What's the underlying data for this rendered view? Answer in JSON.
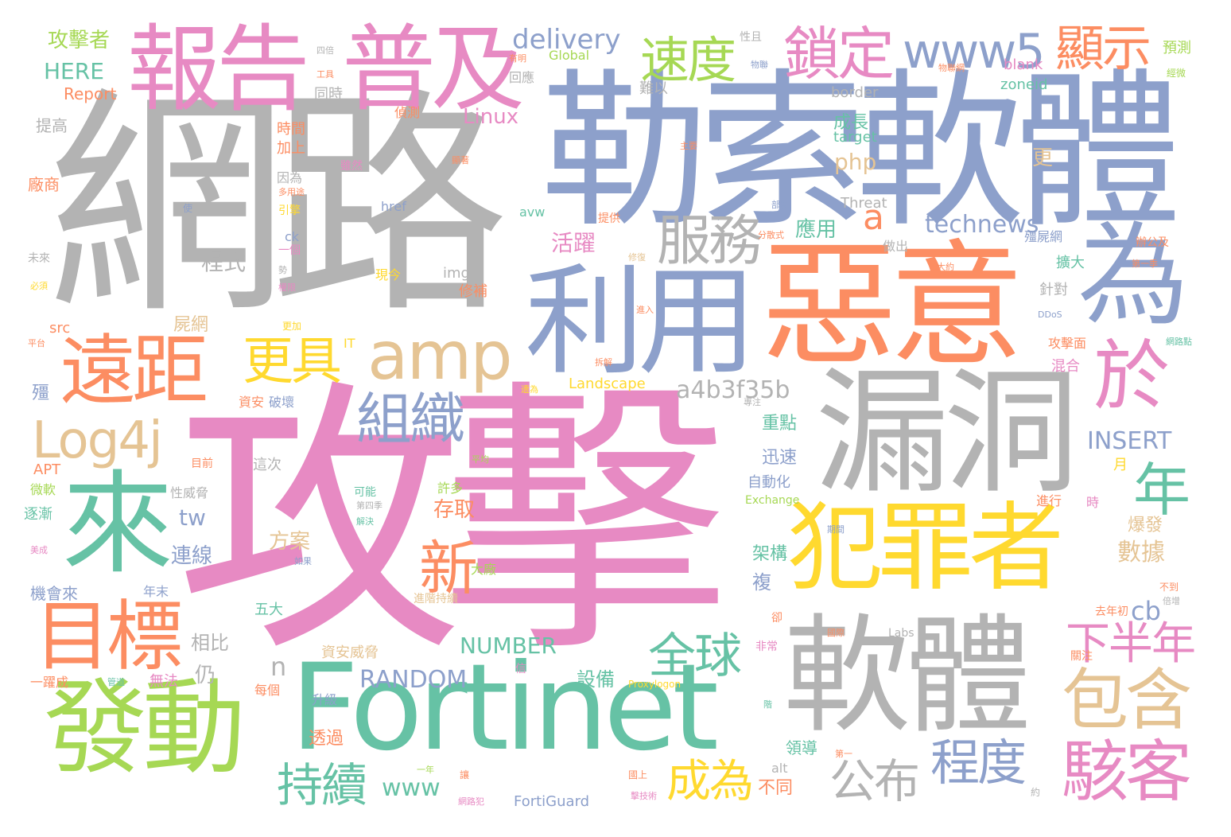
{
  "palette": {
    "gray": "#b3b3b3",
    "blue": "#8da0cb",
    "pink": "#e78ac3",
    "orange": "#fc8d62",
    "green": "#66c2a5",
    "lime": "#a6d854",
    "yellow": "#ffd92f",
    "tan": "#e5c494"
  },
  "words": [
    {
      "id": "w1",
      "text": "網路",
      "color": "#b3b3b3"
    },
    {
      "id": "w2",
      "text": "勒索軟體",
      "color": "#8da0cb"
    },
    {
      "id": "w3",
      "text": "攻擊",
      "color": "#e78ac3"
    },
    {
      "id": "w4",
      "text": "惡意",
      "color": "#fc8d62"
    },
    {
      "id": "w5",
      "text": "漏洞",
      "color": "#b3b3b3"
    },
    {
      "id": "w6",
      "text": "利用",
      "color": "#8da0cb"
    },
    {
      "id": "w7",
      "text": "為",
      "color": "#8da0cb"
    },
    {
      "id": "w8",
      "text": "報告",
      "color": "#e78ac3"
    },
    {
      "id": "w9",
      "text": "普及",
      "color": "#e78ac3"
    },
    {
      "id": "w10",
      "text": "鎖定",
      "color": "#e78ac3"
    },
    {
      "id": "w11",
      "text": "www5",
      "color": "#8da0cb"
    },
    {
      "id": "w12",
      "text": "顯示",
      "color": "#fc8d62"
    },
    {
      "id": "w13",
      "text": "速度",
      "color": "#a6d854"
    },
    {
      "id": "w14",
      "text": "delivery",
      "color": "#8da0cb"
    },
    {
      "id": "w15",
      "text": "服務",
      "color": "#b3b3b3"
    },
    {
      "id": "w16",
      "text": "amp",
      "color": "#e5c494"
    },
    {
      "id": "w17",
      "text": "遠距",
      "color": "#fc8d62"
    },
    {
      "id": "w18",
      "text": "更具",
      "color": "#ffd92f"
    },
    {
      "id": "w19",
      "text": "Log4j",
      "color": "#e5c494"
    },
    {
      "id": "w20",
      "text": "組織",
      "color": "#8da0cb"
    },
    {
      "id": "w21",
      "text": "來",
      "color": "#66c2a5"
    },
    {
      "id": "w22",
      "text": "犯罪者",
      "color": "#ffd92f"
    },
    {
      "id": "w23",
      "text": "於",
      "color": "#e78ac3"
    },
    {
      "id": "w24",
      "text": "年",
      "color": "#66c2a5"
    },
    {
      "id": "w25",
      "text": "目標",
      "color": "#fc8d62"
    },
    {
      "id": "w26",
      "text": "新",
      "color": "#fc8d62"
    },
    {
      "id": "w27",
      "text": "軟體",
      "color": "#b3b3b3"
    },
    {
      "id": "w28",
      "text": "發動",
      "color": "#a6d854"
    },
    {
      "id": "w29",
      "text": "Fortinet",
      "color": "#66c2a5"
    },
    {
      "id": "w30",
      "text": "包含",
      "color": "#e5c494"
    },
    {
      "id": "w31",
      "text": "駭客",
      "color": "#e78ac3"
    },
    {
      "id": "w32",
      "text": "全球",
      "color": "#66c2a5"
    },
    {
      "id": "w33",
      "text": "下半年",
      "color": "#e78ac3"
    },
    {
      "id": "w34",
      "text": "持續",
      "color": "#66c2a5"
    },
    {
      "id": "w35",
      "text": "成為",
      "color": "#ffd92f"
    },
    {
      "id": "w36",
      "text": "公布",
      "color": "#b3b3b3"
    },
    {
      "id": "w37",
      "text": "程度",
      "color": "#8da0cb"
    },
    {
      "id": "w38",
      "text": "technews",
      "color": "#8da0cb"
    },
    {
      "id": "w39",
      "text": "a4b3f35b",
      "color": "#b3b3b3"
    },
    {
      "id": "w40",
      "text": "RANDOM",
      "color": "#8da0cb"
    },
    {
      "id": "w41",
      "text": "NUMBER",
      "color": "#66c2a5"
    },
    {
      "id": "w42",
      "text": "INSERT",
      "color": "#8da0cb"
    },
    {
      "id": "w43",
      "text": "php",
      "color": "#e5c494"
    },
    {
      "id": "w44",
      "text": "Linux",
      "color": "#e78ac3"
    },
    {
      "id": "w45",
      "text": "a",
      "color": "#fc8d62"
    },
    {
      "id": "w46",
      "text": "tw",
      "color": "#8da0cb"
    },
    {
      "id": "w47",
      "text": "cb",
      "color": "#8da0cb"
    },
    {
      "id": "w48",
      "text": "n",
      "color": "#b3b3b3"
    },
    {
      "id": "w49",
      "text": "www",
      "color": "#66c2a5"
    },
    {
      "id": "w50",
      "text": "攻擊者",
      "color": "#a6d854"
    },
    {
      "id": "w51",
      "text": "HERE",
      "color": "#66c2a5"
    },
    {
      "id": "w52",
      "text": "Report",
      "color": "#fc8d62"
    },
    {
      "id": "w53",
      "text": "提高",
      "color": "#b3b3b3"
    },
    {
      "id": "w54",
      "text": "廠商",
      "color": "#fc8d62"
    },
    {
      "id": "w55",
      "text": "程式",
      "color": "#b3b3b3"
    },
    {
      "id": "w56",
      "text": "活躍",
      "color": "#e78ac3"
    },
    {
      "id": "w57",
      "text": "應用",
      "color": "#66c2a5"
    },
    {
      "id": "w58",
      "text": "成長",
      "color": "#66c2a5"
    },
    {
      "id": "w59",
      "text": "target",
      "color": "#66c2a5"
    },
    {
      "id": "w60",
      "text": "border",
      "color": "#b3b3b3"
    },
    {
      "id": "w61",
      "text": "zoneid",
      "color": "#66c2a5"
    },
    {
      "id": "w62",
      "text": "blank",
      "color": "#e78ac3"
    },
    {
      "id": "w63",
      "text": "Threat",
      "color": "#b3b3b3"
    },
    {
      "id": "w64",
      "text": "href",
      "color": "#8da0cb"
    },
    {
      "id": "w65",
      "text": "avw",
      "color": "#66c2a5"
    },
    {
      "id": "w66",
      "text": "img",
      "color": "#b3b3b3"
    },
    {
      "id": "w67",
      "text": "Landscape",
      "color": "#ffd92f"
    },
    {
      "id": "w68",
      "text": "Global",
      "color": "#a6d854"
    },
    {
      "id": "w69",
      "text": "Exchange",
      "color": "#a6d854"
    },
    {
      "id": "w70",
      "text": "Labs",
      "color": "#b3b3b3"
    },
    {
      "id": "w71",
      "text": "FortiGuard",
      "color": "#8da0cb"
    },
    {
      "id": "w72",
      "text": "Proxylogon",
      "color": "#ffd92f"
    },
    {
      "id": "w73",
      "text": "alt",
      "color": "#b3b3b3"
    },
    {
      "id": "w74",
      "text": "DDoS",
      "color": "#8da0cb"
    },
    {
      "id": "w75",
      "text": "IT",
      "color": "#ffd92f"
    },
    {
      "id": "w76",
      "text": "APT",
      "color": "#fc8d62"
    },
    {
      "id": "w77",
      "text": "src",
      "color": "#fc8d62"
    },
    {
      "id": "w78",
      "text": "ck",
      "color": "#8da0cb"
    },
    {
      "id": "w79",
      "text": "殭屍網",
      "color": "#8da0cb"
    },
    {
      "id": "w80",
      "text": "時間",
      "color": "#fc8d62"
    },
    {
      "id": "w81",
      "text": "加上",
      "color": "#fc8d62"
    },
    {
      "id": "w82",
      "text": "因為",
      "color": "#b3b3b3"
    },
    {
      "id": "w83",
      "text": "引擎",
      "color": "#ffd92f"
    },
    {
      "id": "w84",
      "text": "一個",
      "color": "#e78ac3"
    },
    {
      "id": "w85",
      "text": "現今",
      "color": "#ffd92f"
    },
    {
      "id": "w86",
      "text": "修補",
      "color": "#fc8d62"
    },
    {
      "id": "w87",
      "text": "屍網",
      "color": "#e5c494"
    },
    {
      "id": "w88",
      "text": "資安",
      "color": "#fc8d62"
    },
    {
      "id": "w89",
      "text": "破壞",
      "color": "#8da0cb"
    },
    {
      "id": "w90",
      "text": "目前",
      "color": "#fc8d62"
    },
    {
      "id": "w91",
      "text": "這次",
      "color": "#b3b3b3"
    },
    {
      "id": "w92",
      "text": "可能",
      "color": "#66c2a5"
    },
    {
      "id": "w93",
      "text": "許多",
      "color": "#a6d854"
    },
    {
      "id": "w94",
      "text": "性威脅",
      "color": "#b3b3b3"
    },
    {
      "id": "w95",
      "text": "存取",
      "color": "#fc8d62"
    },
    {
      "id": "w96",
      "text": "方案",
      "color": "#e5c494"
    },
    {
      "id": "w97",
      "text": "連線",
      "color": "#8da0cb"
    },
    {
      "id": "w98",
      "text": "五大",
      "color": "#66c2a5"
    },
    {
      "id": "w99",
      "text": "相比",
      "color": "#b3b3b3"
    },
    {
      "id": "w100",
      "text": "機會來",
      "color": "#8da0cb"
    },
    {
      "id": "w101",
      "text": "年末",
      "color": "#8da0cb"
    },
    {
      "id": "w102",
      "text": "大廠",
      "color": "#a6d854"
    },
    {
      "id": "w103",
      "text": "資安威脅",
      "color": "#e5c494"
    },
    {
      "id": "w104",
      "text": "無法",
      "color": "#e78ac3"
    },
    {
      "id": "w105",
      "text": "仍",
      "color": "#b3b3b3"
    },
    {
      "id": "w106",
      "text": "每個",
      "color": "#fc8d62"
    },
    {
      "id": "w107",
      "text": "升級",
      "color": "#8da0cb"
    },
    {
      "id": "w108",
      "text": "透過",
      "color": "#fc8d62"
    },
    {
      "id": "w109",
      "text": "設備",
      "color": "#66c2a5"
    },
    {
      "id": "w110",
      "text": "不同",
      "color": "#fc8d62"
    },
    {
      "id": "w111",
      "text": "領導",
      "color": "#66c2a5"
    },
    {
      "id": "w112",
      "text": "重點",
      "color": "#66c2a5"
    },
    {
      "id": "w113",
      "text": "迅速",
      "color": "#8da0cb"
    },
    {
      "id": "w114",
      "text": "自動化",
      "color": "#8da0cb"
    },
    {
      "id": "w115",
      "text": "進行",
      "color": "#fc8d62"
    },
    {
      "id": "w116",
      "text": "架構",
      "color": "#66c2a5"
    },
    {
      "id": "w117",
      "text": "複",
      "color": "#8da0cb"
    },
    {
      "id": "w118",
      "text": "數據",
      "color": "#e5c494"
    },
    {
      "id": "w119",
      "text": "爆發",
      "color": "#e5c494"
    },
    {
      "id": "w120",
      "text": "逐漸",
      "color": "#66c2a5"
    },
    {
      "id": "w121",
      "text": "微軟",
      "color": "#a6d854"
    },
    {
      "id": "w122",
      "text": "殭",
      "color": "#8da0cb"
    },
    {
      "id": "w123",
      "text": "一躍成",
      "color": "#fc8d62"
    },
    {
      "id": "w124",
      "text": "擴大",
      "color": "#66c2a5"
    },
    {
      "id": "w125",
      "text": "針對",
      "color": "#b3b3b3"
    },
    {
      "id": "w126",
      "text": "攻擊面",
      "color": "#fc8d62"
    },
    {
      "id": "w127",
      "text": "混合",
      "color": "#e78ac3"
    },
    {
      "id": "w128",
      "text": "辦公及",
      "color": "#fc8d62"
    },
    {
      "id": "w129",
      "text": "預測",
      "color": "#a6d854"
    },
    {
      "id": "w130",
      "text": "更",
      "color": "#e5c494"
    },
    {
      "id": "w131",
      "text": "做出",
      "color": "#b3b3b3"
    },
    {
      "id": "w132",
      "text": "提供",
      "color": "#fc8d62"
    },
    {
      "id": "w133",
      "text": "同時",
      "color": "#b3b3b3"
    },
    {
      "id": "w134",
      "text": "回應",
      "color": "#b3b3b3"
    },
    {
      "id": "w135",
      "text": "偵測",
      "color": "#fc8d62"
    },
    {
      "id": "w136",
      "text": "雖然",
      "color": "#e78ac3"
    },
    {
      "id": "w137",
      "text": "難以",
      "color": "#b3b3b3"
    },
    {
      "id": "w138",
      "text": "性且",
      "color": "#b3b3b3"
    },
    {
      "id": "w139",
      "text": "月",
      "color": "#ffd92f"
    },
    {
      "id": "w140",
      "text": "時",
      "color": "#e78ac3"
    },
    {
      "id": "w141",
      "text": "去年初",
      "color": "#fc8d62"
    },
    {
      "id": "w142",
      "text": "關注",
      "color": "#fc8d62"
    },
    {
      "id": "w143",
      "text": "未來",
      "color": "#b3b3b3"
    },
    {
      "id": "w144",
      "text": "經歷",
      "color": "#fc8d62"
    },
    {
      "id": "w145",
      "text": "工具",
      "color": "#fc8d62"
    },
    {
      "id": "w146",
      "text": "物聯網",
      "color": "#fc8d62"
    },
    {
      "id": "w147",
      "text": "第一季",
      "color": "#fc8d62"
    },
    {
      "id": "w148",
      "text": "分散式",
      "color": "#fc8d62"
    },
    {
      "id": "w149",
      "text": "物聯",
      "color": "#8da0cb"
    },
    {
      "id": "w150",
      "text": "經微",
      "color": "#a6d854"
    },
    {
      "id": "w151",
      "text": "四倍",
      "color": "#b3b3b3"
    },
    {
      "id": "w152",
      "text": "有明",
      "color": "#fc8d62"
    },
    {
      "id": "w153",
      "text": "多用途",
      "color": "#fc8d62"
    },
    {
      "id": "w154",
      "text": "使",
      "color": "#8da0cb"
    },
    {
      "id": "w155",
      "text": "必須",
      "color": "#ffd92f"
    },
    {
      "id": "w156",
      "text": "權限",
      "color": "#e78ac3"
    },
    {
      "id": "w157",
      "text": "平台",
      "color": "#fc8d62"
    },
    {
      "id": "w158",
      "text": "勢",
      "color": "#b3b3b3"
    },
    {
      "id": "w159",
      "text": "平均",
      "color": "#a6d854"
    },
    {
      "id": "w160",
      "text": "第四季",
      "color": "#b3b3b3"
    },
    {
      "id": "w161",
      "text": "解決",
      "color": "#66c2a5"
    },
    {
      "id": "w162",
      "text": "不到",
      "color": "#fc8d62"
    },
    {
      "id": "w163",
      "text": "倍增",
      "color": "#b3b3b3"
    },
    {
      "id": "w164",
      "text": "卻",
      "color": "#fc8d62"
    },
    {
      "id": "w165",
      "text": "非常",
      "color": "#e78ac3"
    },
    {
      "id": "w166",
      "text": "階",
      "color": "#66c2a5"
    },
    {
      "id": "w167",
      "text": "進階持續",
      "color": "#e5c494"
    },
    {
      "id": "w168",
      "text": "信",
      "color": "#e78ac3"
    },
    {
      "id": "w169",
      "text": "國上",
      "color": "#fc8d62"
    },
    {
      "id": "w170",
      "text": "擊技術",
      "color": "#e78ac3"
    },
    {
      "id": "w171",
      "text": "約",
      "color": "#b3b3b3"
    },
    {
      "id": "w172",
      "text": "讓",
      "color": "#fc8d62"
    },
    {
      "id": "w173",
      "text": "第一",
      "color": "#fc8d62"
    },
    {
      "id": "w174",
      "text": "網路犯",
      "color": "#e78ac3"
    },
    {
      "id": "w175",
      "text": "管道",
      "color": "#66c2a5"
    },
    {
      "id": "w176",
      "text": "首",
      "color": "#8da0cb"
    },
    {
      "id": "w177",
      "text": "美成",
      "color": "#e78ac3"
    },
    {
      "id": "w178",
      "text": "如果",
      "color": "#8da0cb"
    },
    {
      "id": "w179",
      "text": "國際",
      "color": "#fc8d62"
    },
    {
      "id": "w180",
      "text": "一年",
      "color": "#a6d854"
    },
    {
      "id": "w181",
      "text": "期間",
      "color": "#8da0cb"
    },
    {
      "id": "w182",
      "text": "大約",
      "color": "#fc8d62"
    },
    {
      "id": "w183",
      "text": "國際",
      "color": "#8da0cb"
    },
    {
      "id": "w184",
      "text": "拆解",
      "color": "#fc8d62"
    },
    {
      "id": "w185",
      "text": "進入",
      "color": "#fc8d62"
    },
    {
      "id": "w186",
      "text": "修復",
      "color": "#e5c494"
    },
    {
      "id": "w187",
      "text": "更加",
      "color": "#ffd92f"
    },
    {
      "id": "w188",
      "text": "部度",
      "color": "#8da0cb"
    },
    {
      "id": "w189",
      "text": "網路點",
      "color": "#66c2a5"
    },
    {
      "id": "w190",
      "text": "專注",
      "color": "#b3b3b3"
    },
    {
      "id": "w191",
      "text": "顯著",
      "color": "#fc8d62"
    },
    {
      "id": "w192",
      "text": "遭為",
      "color": "#ffd92f"
    },
    {
      "id": "w193",
      "text": "主要",
      "color": "#fc8d62"
    }
  ]
}
